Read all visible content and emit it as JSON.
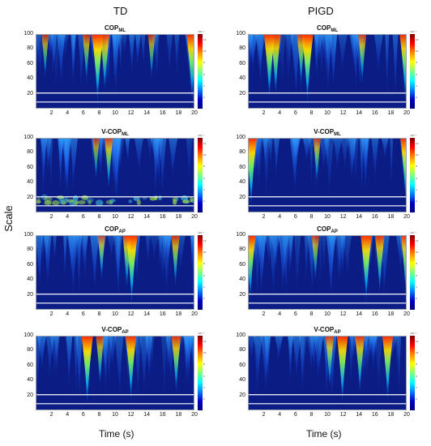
{
  "figure": {
    "col_titles": [
      "TD",
      "PIGD"
    ],
    "ylabel": "Scale",
    "xlabel": "Time (s)"
  },
  "chart_data": [
    {
      "type": "heatmap",
      "group": "TD",
      "title_main": "COP",
      "title_sub": "ML",
      "x_ticks": [
        2,
        4,
        6,
        8,
        10,
        12,
        14,
        16,
        18,
        20
      ],
      "y_ticks": [
        20,
        40,
        60,
        80,
        100
      ],
      "ylim": [
        0,
        100
      ],
      "xlim": [
        0,
        20
      ],
      "colorbar_exponent": "×10⁻³",
      "colorbar_ticks": [
        2,
        4,
        6,
        8,
        10,
        12
      ],
      "hotspots": [
        {
          "t": 7.7,
          "h": 1.0
        },
        {
          "t": 8.6,
          "h": 0.7
        },
        {
          "t": 6.3,
          "h": 0.45
        },
        {
          "t": 19.6,
          "h": 0.95
        },
        {
          "t": 1.1,
          "h": 0.35
        },
        {
          "t": 14.5,
          "h": 0.35
        }
      ],
      "band": "low"
    },
    {
      "type": "heatmap",
      "group": "PIGD",
      "title_main": "COP",
      "title_sub": "ML",
      "x_ticks": [
        2,
        4,
        6,
        8,
        10,
        12,
        14,
        16,
        18,
        20
      ],
      "y_ticks": [
        20,
        40,
        60,
        80,
        100
      ],
      "ylim": [
        0,
        100
      ],
      "xlim": [
        0,
        20
      ],
      "colorbar_exponent": "×10⁻³",
      "colorbar_ticks": [
        2,
        4,
        6,
        8,
        10,
        12
      ],
      "hotspots": [
        {
          "t": 2.6,
          "h": 0.9
        },
        {
          "t": 3.4,
          "h": 0.8
        },
        {
          "t": 7.4,
          "h": 1.0
        },
        {
          "t": 6.6,
          "h": 0.55
        },
        {
          "t": 14.3,
          "h": 0.5
        },
        {
          "t": 19.7,
          "h": 0.9
        }
      ],
      "band": "low"
    },
    {
      "type": "heatmap",
      "group": "TD",
      "title_main": "V-COP",
      "title_sub": "ML",
      "x_ticks": [
        2,
        4,
        6,
        8,
        10,
        12,
        14,
        16,
        18,
        20
      ],
      "y_ticks": [
        20,
        40,
        60,
        80,
        100
      ],
      "ylim": [
        0,
        100
      ],
      "xlim": [
        0,
        20
      ],
      "colorbar_exponent": "×10⁻³",
      "colorbar_ticks": [
        2,
        4,
        6,
        8,
        10,
        12
      ],
      "hotspots": [
        {
          "t": 9.1,
          "h": 0.55
        },
        {
          "t": 7.5,
          "h": 0.3
        }
      ],
      "band": "green"
    },
    {
      "type": "heatmap",
      "group": "PIGD",
      "title_main": "V-COP",
      "title_sub": "ML",
      "x_ticks": [
        2,
        4,
        6,
        8,
        10,
        12,
        14,
        16,
        18,
        20
      ],
      "y_ticks": [
        20,
        40,
        60,
        80,
        100
      ],
      "ylim": [
        0,
        100
      ],
      "xlim": [
        0,
        20
      ],
      "colorbar_exponent": "×10⁻³",
      "colorbar_ticks": [
        2,
        4,
        6,
        8,
        10,
        12
      ],
      "hotspots": [
        {
          "t": 0.3,
          "h": 1.0
        },
        {
          "t": 19.8,
          "h": 0.95
        },
        {
          "t": 8.6,
          "h": 0.4
        }
      ],
      "band": "low"
    },
    {
      "type": "heatmap",
      "group": "TD",
      "title_main": "COP",
      "title_sub": "AP",
      "x_ticks": [
        2,
        4,
        6,
        8,
        10,
        12,
        14,
        16,
        18,
        20
      ],
      "y_ticks": [
        20,
        40,
        60,
        80,
        100
      ],
      "ylim": [
        0,
        100
      ],
      "xlim": [
        0,
        20
      ],
      "colorbar_exponent": "×10⁻³",
      "colorbar_ticks": [
        2,
        4,
        6,
        8,
        10,
        12
      ],
      "hotspots": [
        {
          "t": 12.0,
          "h": 1.0
        },
        {
          "t": 11.4,
          "h": 0.6
        },
        {
          "t": 17.5,
          "h": 0.55
        },
        {
          "t": 8.2,
          "h": 0.35
        }
      ],
      "band": "low"
    },
    {
      "type": "heatmap",
      "group": "PIGD",
      "title_main": "COP",
      "title_sub": "AP",
      "x_ticks": [
        2,
        4,
        6,
        8,
        10,
        12,
        14,
        16,
        18,
        20
      ],
      "y_ticks": [
        20,
        40,
        60,
        80,
        100
      ],
      "ylim": [
        0,
        100
      ],
      "xlim": [
        0,
        20
      ],
      "colorbar_exponent": "×10⁻³",
      "colorbar_ticks": [
        2,
        4,
        6,
        8,
        10,
        12
      ],
      "hotspots": [
        {
          "t": 0.2,
          "h": 0.9
        },
        {
          "t": 14.8,
          "h": 0.95
        },
        {
          "t": 16.5,
          "h": 0.7
        },
        {
          "t": 19.8,
          "h": 0.8
        },
        {
          "t": 8.4,
          "h": 0.4
        }
      ],
      "band": "low"
    },
    {
      "type": "heatmap",
      "group": "TD",
      "title_main": "V-COP",
      "title_sub": "AP",
      "x_ticks": [
        2,
        4,
        6,
        8,
        10,
        12,
        14,
        16,
        18,
        20
      ],
      "y_ticks": [
        20,
        40,
        60,
        80,
        100
      ],
      "ylim": [
        0,
        100
      ],
      "xlim": [
        0,
        20
      ],
      "colorbar_exponent": "×10⁻³",
      "colorbar_ticks": [
        2,
        4,
        6,
        8,
        10,
        12
      ],
      "hotspots": [
        {
          "t": 6.4,
          "h": 1.0
        },
        {
          "t": 11.9,
          "h": 0.9
        },
        {
          "t": 17.6,
          "h": 0.7
        },
        {
          "t": 8.0,
          "h": 0.5
        }
      ],
      "band": "low"
    },
    {
      "type": "heatmap",
      "group": "PIGD",
      "title_main": "V-COP",
      "title_sub": "AP",
      "x_ticks": [
        2,
        4,
        6,
        8,
        10,
        12,
        14,
        16,
        18,
        20
      ],
      "y_ticks": [
        20,
        40,
        60,
        80,
        100
      ],
      "ylim": [
        0,
        100
      ],
      "xlim": [
        0,
        20
      ],
      "colorbar_exponent": "×10⁻³",
      "colorbar_ticks": [
        2,
        4,
        6,
        8,
        10,
        12
      ],
      "hotspots": [
        {
          "t": 11.8,
          "h": 0.95
        },
        {
          "t": 14.0,
          "h": 0.7
        },
        {
          "t": 17.5,
          "h": 0.9
        },
        {
          "t": 10.2,
          "h": 0.55
        }
      ],
      "band": "low"
    }
  ]
}
